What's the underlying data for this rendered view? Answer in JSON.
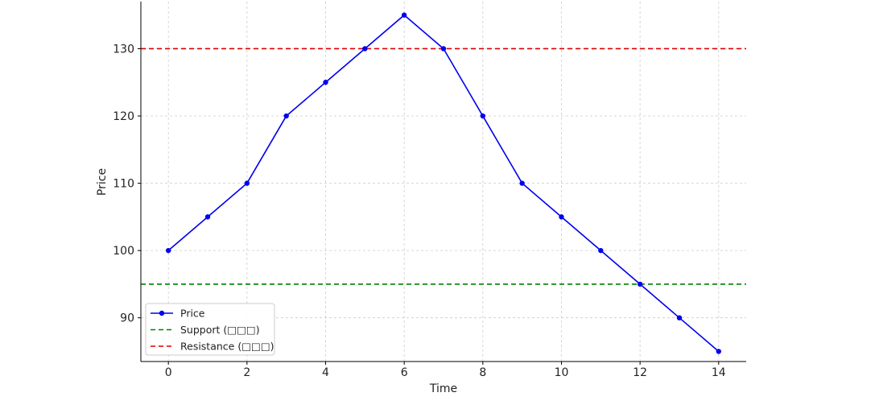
{
  "chart_data": {
    "type": "line",
    "title": "",
    "xlabel": "Time",
    "ylabel": "Price",
    "xlim": [
      -0.7,
      14.7
    ],
    "ylim": [
      83.5,
      137
    ],
    "xticks": [
      0,
      2,
      4,
      6,
      8,
      10,
      12,
      14
    ],
    "yticks": [
      90,
      100,
      110,
      120,
      130
    ],
    "grid": true,
    "legend_position": "bottom-left",
    "x": [
      0,
      1,
      2,
      3,
      4,
      5,
      6,
      7,
      8,
      9,
      10,
      11,
      12,
      13,
      14
    ],
    "series": [
      {
        "name": "Price",
        "values": [
          100,
          105,
          110,
          120,
          125,
          130,
          135,
          130,
          120,
          110,
          105,
          100,
          95,
          90,
          85
        ],
        "color": "#0000ee",
        "style": "solid",
        "marker": "circle"
      }
    ],
    "reference_lines": [
      {
        "name": "Support (□□□)",
        "value": 95,
        "color": "#008000",
        "style": "dashed"
      },
      {
        "name": "Resistance (□□□)",
        "value": 130,
        "color": "#dd0000",
        "style": "dashed"
      }
    ]
  }
}
